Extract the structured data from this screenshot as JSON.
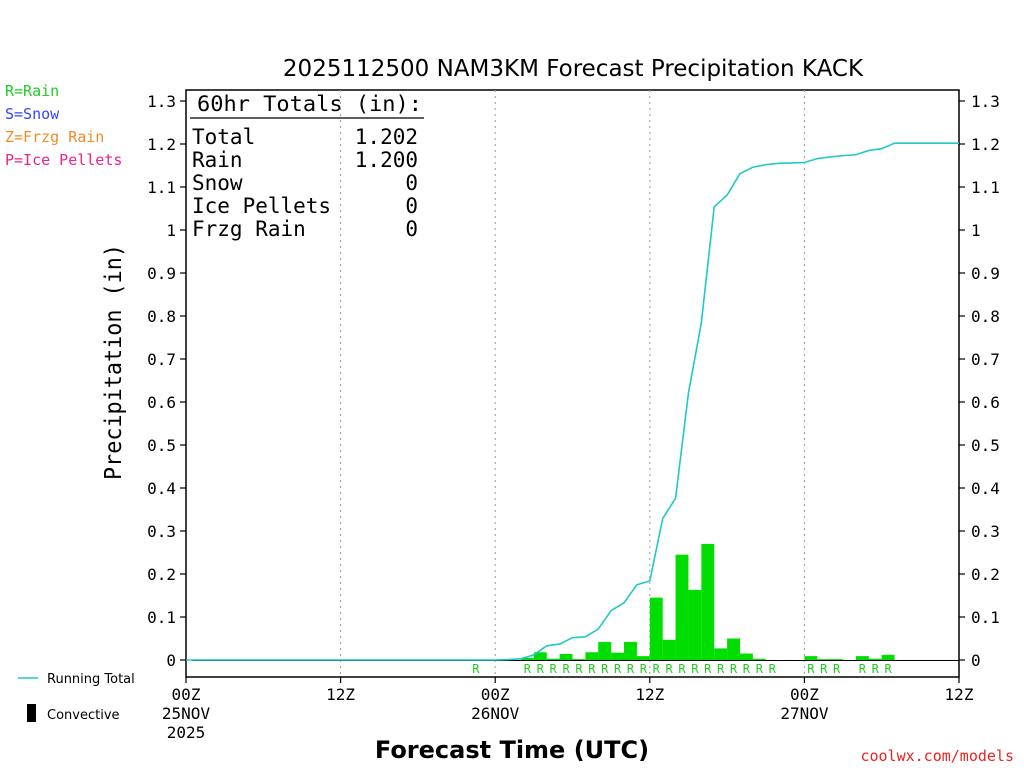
{
  "chart_data": {
    "type": "bar",
    "title": "2025112500 NAM3KM Forecast Precipitation KACK",
    "ylabel": "Precipitation (in)",
    "xlabel": "Forecast Time (UTC)",
    "ylim": [
      -0.04,
      1.32
    ],
    "xlim_hours": [
      0,
      60
    ],
    "y_ticks": [
      {
        "v": 0,
        "label": "0"
      },
      {
        "v": 0.1,
        "label": "0.1"
      },
      {
        "v": 0.2,
        "label": "0.2"
      },
      {
        "v": 0.3,
        "label": "0.3"
      },
      {
        "v": 0.4,
        "label": "0.4"
      },
      {
        "v": 0.5,
        "label": "0.5"
      },
      {
        "v": 0.6,
        "label": "0.6"
      },
      {
        "v": 0.7,
        "label": "0.7"
      },
      {
        "v": 0.8,
        "label": "0.8"
      },
      {
        "v": 0.9,
        "label": "0.9"
      },
      {
        "v": 1.0,
        "label": "1"
      },
      {
        "v": 1.1,
        "label": "1.1"
      },
      {
        "v": 1.2,
        "label": "1.2"
      },
      {
        "v": 1.3,
        "label": "1.3"
      }
    ],
    "x_ticks": [
      {
        "h": 0,
        "label": "00Z",
        "sub": "25NOV",
        "sub2": "2025"
      },
      {
        "h": 12,
        "label": "12Z",
        "sub": "",
        "sub2": ""
      },
      {
        "h": 24,
        "label": "00Z",
        "sub": "26NOV",
        "sub2": ""
      },
      {
        "h": 36,
        "label": "12Z",
        "sub": "",
        "sub2": ""
      },
      {
        "h": 48,
        "label": "00Z",
        "sub": "27NOV",
        "sub2": ""
      },
      {
        "h": 60,
        "label": "12Z",
        "sub": "",
        "sub2": ""
      }
    ],
    "hourly_precip": [
      {
        "h": 27,
        "v": 0.005
      },
      {
        "h": 28,
        "v": 0.018
      },
      {
        "h": 29,
        "v": 0.003
      },
      {
        "h": 30,
        "v": 0.014
      },
      {
        "h": 31,
        "v": 0.002
      },
      {
        "h": 32,
        "v": 0.018
      },
      {
        "h": 33,
        "v": 0.042
      },
      {
        "h": 34,
        "v": 0.017
      },
      {
        "h": 35,
        "v": 0.042
      },
      {
        "h": 36,
        "v": 0.009
      },
      {
        "h": 37,
        "v": 0.145
      },
      {
        "h": 38,
        "v": 0.047
      },
      {
        "h": 39,
        "v": 0.245
      },
      {
        "h": 40,
        "v": 0.163
      },
      {
        "h": 41,
        "v": 0.27
      },
      {
        "h": 42,
        "v": 0.027
      },
      {
        "h": 43,
        "v": 0.05
      },
      {
        "h": 44,
        "v": 0.015
      },
      {
        "h": 45,
        "v": 0.003
      },
      {
        "h": 49,
        "v": 0.009
      },
      {
        "h": 50,
        "v": 0.002
      },
      {
        "h": 51,
        "v": 0.002
      },
      {
        "h": 53,
        "v": 0.009
      },
      {
        "h": 54,
        "v": 0.003
      },
      {
        "h": 55,
        "v": 0.012
      }
    ],
    "running_total": [
      [
        0,
        0
      ],
      [
        1,
        0
      ],
      [
        24,
        0
      ],
      [
        25,
        0.001
      ],
      [
        26,
        0.003
      ],
      [
        27,
        0.012
      ],
      [
        28,
        0.033
      ],
      [
        29,
        0.037
      ],
      [
        30,
        0.052
      ],
      [
        31,
        0.054
      ],
      [
        32,
        0.072
      ],
      [
        33,
        0.115
      ],
      [
        34,
        0.133
      ],
      [
        35,
        0.175
      ],
      [
        36,
        0.184
      ],
      [
        37,
        0.329
      ],
      [
        38,
        0.376
      ],
      [
        39,
        0.621
      ],
      [
        40,
        0.784
      ],
      [
        41,
        1.054
      ],
      [
        42,
        1.081
      ],
      [
        43,
        1.131
      ],
      [
        44,
        1.146
      ],
      [
        45,
        1.152
      ],
      [
        46,
        1.155
      ],
      [
        47,
        1.156
      ],
      [
        48,
        1.157
      ],
      [
        49,
        1.166
      ],
      [
        50,
        1.17
      ],
      [
        51,
        1.173
      ],
      [
        52,
        1.175
      ],
      [
        53,
        1.185
      ],
      [
        54,
        1.189
      ],
      [
        55,
        1.202
      ],
      [
        60,
        1.202
      ]
    ],
    "ptype_markers": {
      "symbol": "R",
      "hours": [
        23,
        27,
        28,
        29,
        30,
        31,
        32,
        33,
        34,
        35,
        36,
        37,
        38,
        39,
        40,
        41,
        42,
        43,
        44,
        45,
        46,
        49,
        50,
        51,
        53,
        54,
        55
      ]
    },
    "totals_box": {
      "heading": "60hr Totals (in):",
      "rows": [
        {
          "label": "Total",
          "value": "1.202"
        },
        {
          "label": "Rain",
          "value": "1.200"
        },
        {
          "label": "Snow",
          "value": "0"
        },
        {
          "label": "Ice Pellets",
          "value": "0"
        },
        {
          "label": "Frzg Rain",
          "value": "0"
        }
      ]
    },
    "ptype_legend": [
      {
        "text": "R=Rain",
        "color": "#22cc22"
      },
      {
        "text": "S=Snow",
        "color": "#3344ff"
      },
      {
        "text": "Z=Frzg Rain",
        "color": "#f08c28"
      },
      {
        "text": "P=Ice Pellets",
        "color": "#ee2288"
      }
    ],
    "series_legend": [
      {
        "text": "Running Total",
        "color": "#20c8c8"
      },
      {
        "text": "Convective",
        "color": "#000000"
      }
    ],
    "credit": "coolwx.com/models",
    "colors": {
      "bar": "#00dd00",
      "line": "#20c8c8",
      "marker": "#22cc22",
      "credit": "#ee2222"
    }
  }
}
